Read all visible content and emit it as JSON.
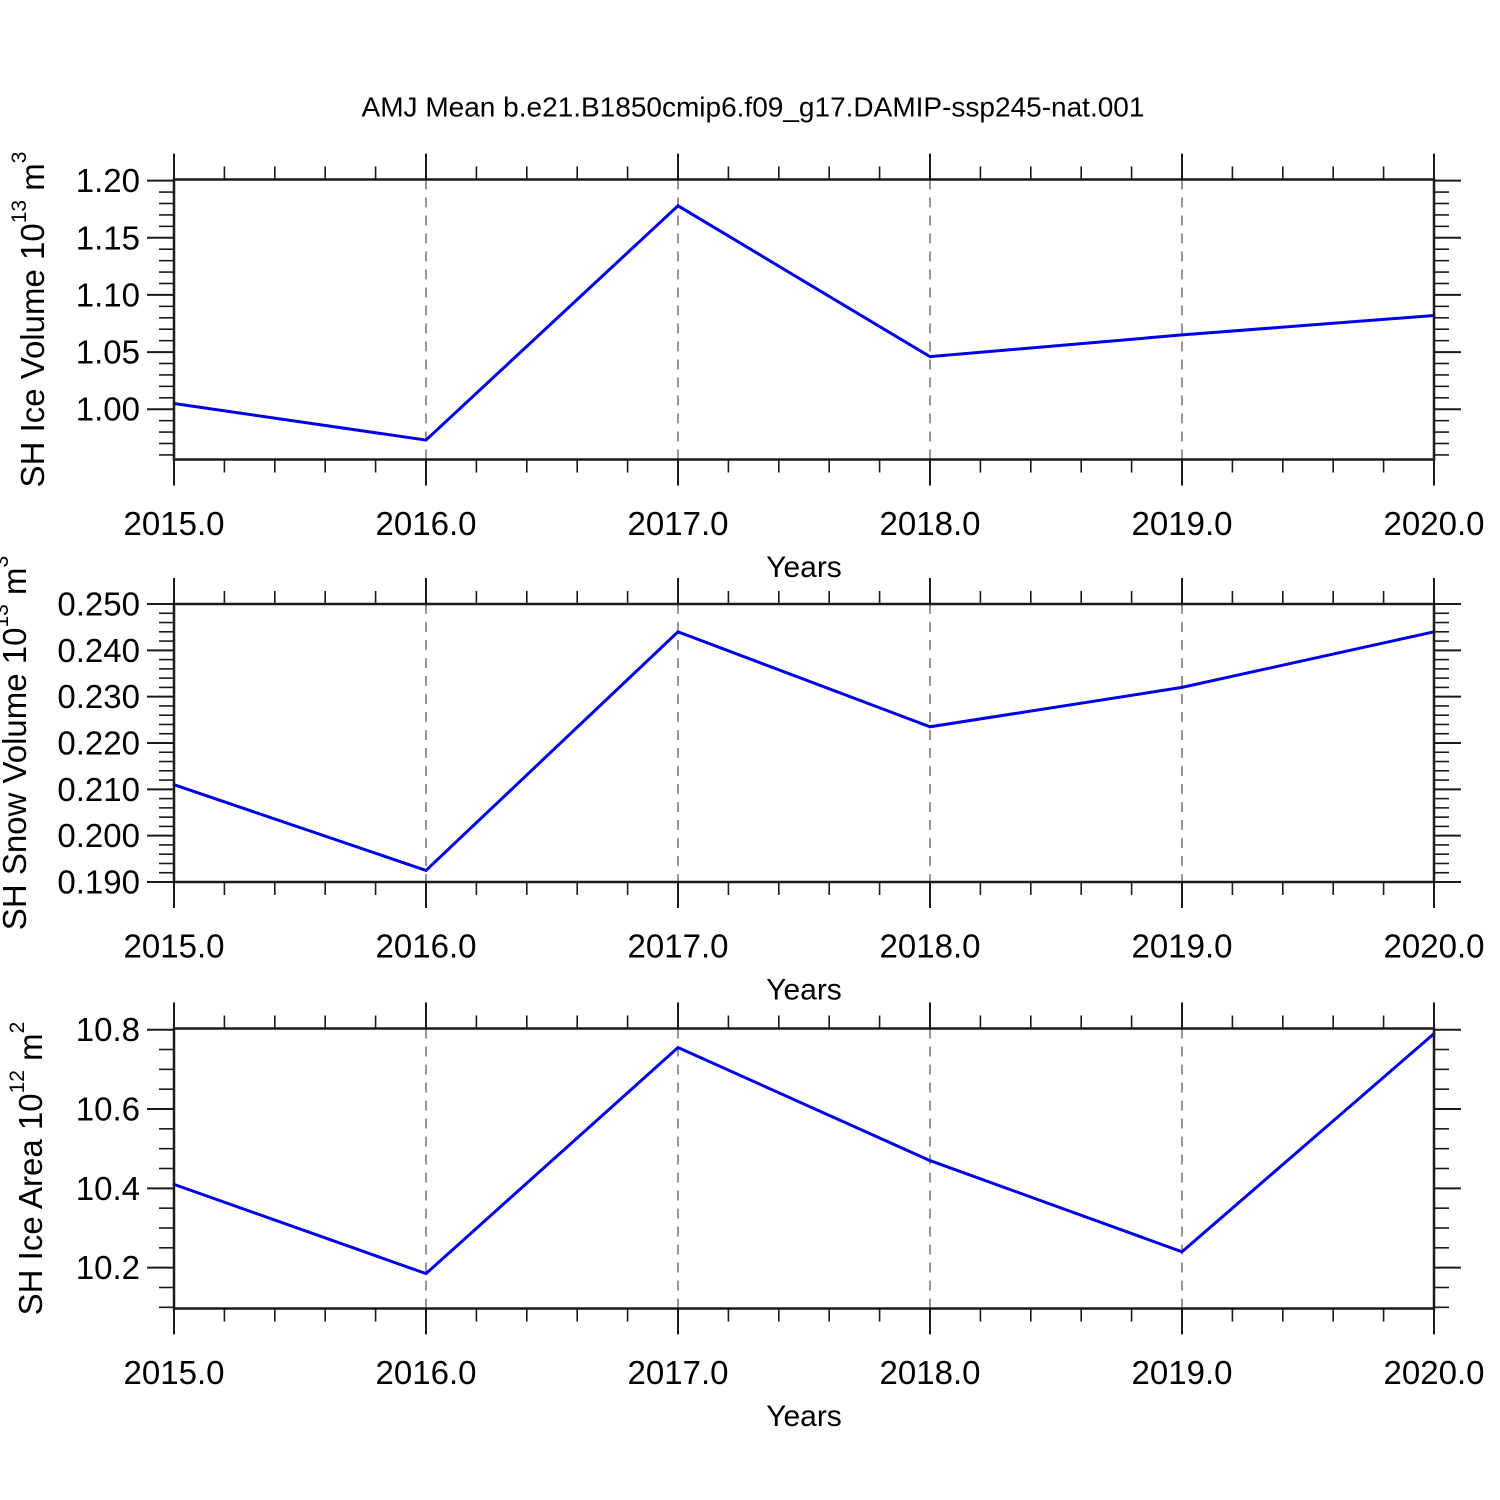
{
  "title": "AMJ Mean b.e21.B1850cmip6.f09_g17.DAMIP-ssp245-nat.001",
  "colors": {
    "line": "#0000e8",
    "frame": "#1a1a1a",
    "grid": "#7d7d7d",
    "text": "#000000",
    "background": "#ffffff"
  },
  "chart_data": [
    {
      "type": "line",
      "name": "sh-ice-volume",
      "ylabel": "SH Ice Volume 10¹³ m³",
      "ylabel_parts": [
        [
          "SH Ice Volume 10",
          0
        ],
        [
          "13",
          1
        ],
        [
          " m",
          0
        ],
        [
          "3",
          1
        ]
      ],
      "xlabel": "Years",
      "x": [
        2015,
        2016,
        2017,
        2018,
        2019,
        2020
      ],
      "values": [
        1.005,
        0.973,
        1.178,
        1.046,
        1.065,
        1.082
      ],
      "xlim": [
        2015,
        2020
      ],
      "ylim": [
        0.956,
        1.201
      ],
      "ymajors": [
        {
          "v": 1.0,
          "label": "1.00"
        },
        {
          "v": 1.05,
          "label": "1.05"
        },
        {
          "v": 1.1,
          "label": "1.10"
        },
        {
          "v": 1.15,
          "label": "1.15"
        },
        {
          "v": 1.2,
          "label": "1.20"
        }
      ],
      "yminor_step": 0.01,
      "xtick_labels": [
        "2015.0",
        "2016.0",
        "2017.0",
        "2018.0",
        "2019.0",
        "2020.0"
      ],
      "xminor_step": 0.2,
      "grid": "vertical-dashed",
      "legend": "none"
    },
    {
      "type": "line",
      "name": "sh-snow-volume",
      "ylabel": "SH Snow Volume 10¹³ m³",
      "ylabel_parts": [
        [
          "SH Snow Volume 10",
          0
        ],
        [
          "13",
          1
        ],
        [
          " m",
          0
        ],
        [
          "3",
          1
        ]
      ],
      "xlabel": "Years",
      "x": [
        2015,
        2016,
        2017,
        2018,
        2019,
        2020
      ],
      "values": [
        0.211,
        0.1925,
        0.244,
        0.2235,
        0.232,
        0.244
      ],
      "xlim": [
        2015,
        2020
      ],
      "ylim": [
        0.19,
        0.25
      ],
      "ymajors": [
        {
          "v": 0.19,
          "label": "0.190"
        },
        {
          "v": 0.2,
          "label": "0.200"
        },
        {
          "v": 0.21,
          "label": "0.210"
        },
        {
          "v": 0.22,
          "label": "0.220"
        },
        {
          "v": 0.23,
          "label": "0.230"
        },
        {
          "v": 0.24,
          "label": "0.240"
        },
        {
          "v": 0.25,
          "label": "0.250"
        }
      ],
      "yminor_step": 0.002,
      "xtick_labels": [
        "2015.0",
        "2016.0",
        "2017.0",
        "2018.0",
        "2019.0",
        "2020.0"
      ],
      "xminor_step": 0.2,
      "grid": "vertical-dashed",
      "legend": "none"
    },
    {
      "type": "line",
      "name": "sh-ice-area",
      "ylabel": "SH Ice Area 10¹² m²",
      "ylabel_parts": [
        [
          "SH Ice Area 10",
          0
        ],
        [
          "12",
          1
        ],
        [
          " m",
          0
        ],
        [
          "2",
          1
        ]
      ],
      "xlabel": "Years",
      "x": [
        2015,
        2016,
        2017,
        2018,
        2019,
        2020
      ],
      "values": [
        10.41,
        10.185,
        10.755,
        10.47,
        10.24,
        10.79
      ],
      "xlim": [
        2015,
        2020
      ],
      "ylim": [
        10.097,
        10.803
      ],
      "ymajors": [
        {
          "v": 10.2,
          "label": "10.2"
        },
        {
          "v": 10.4,
          "label": "10.4"
        },
        {
          "v": 10.6,
          "label": "10.6"
        },
        {
          "v": 10.8,
          "label": "10.8"
        }
      ],
      "yminor_step": 0.05,
      "xtick_labels": [
        "2015.0",
        "2016.0",
        "2017.0",
        "2018.0",
        "2019.0",
        "2020.0"
      ],
      "xminor_step": 0.2,
      "grid": "vertical-dashed",
      "legend": "none"
    }
  ]
}
